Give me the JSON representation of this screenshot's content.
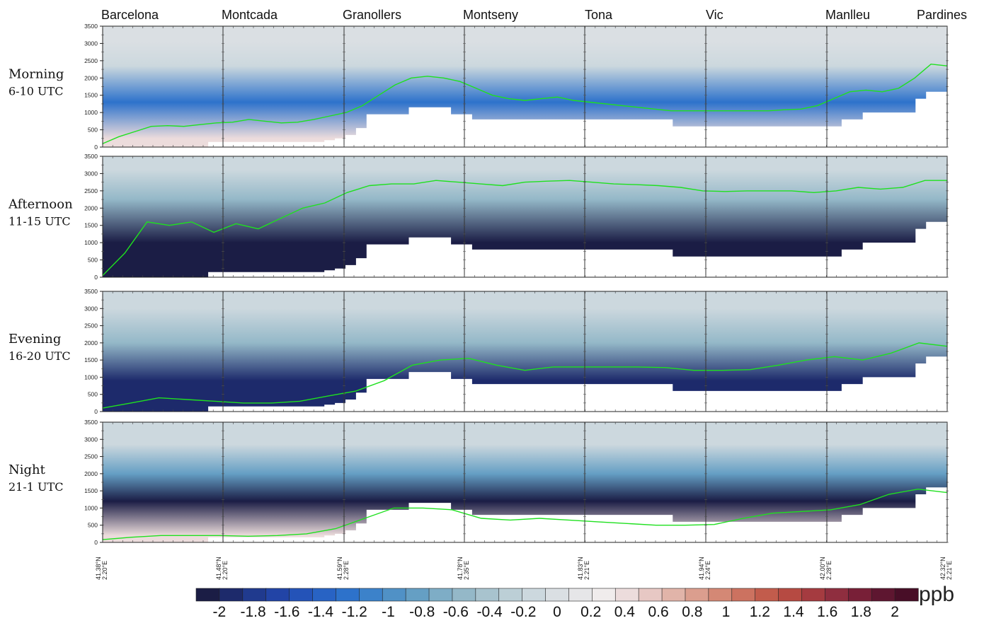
{
  "chart_data": {
    "type": "heatmap",
    "title": "",
    "unit": "ppb",
    "ylim": [
      0,
      3500
    ],
    "yticks": [
      0,
      500,
      1000,
      1500,
      2000,
      2500,
      3000,
      3500
    ],
    "locations": [
      "Barcelona",
      "Montcada",
      "Granollers",
      "Montseny",
      "Tona",
      "Vic",
      "Manlleu",
      "Pardines"
    ],
    "xtick_labels": [
      {
        "lat": "41.38°N",
        "lon": "2.20°E"
      },
      {
        "lat": "41.48°N",
        "lon": "2.20°E"
      },
      {
        "lat": "41.59°N",
        "lon": "2.28°E"
      },
      {
        "lat": "41.78°N",
        "lon": "2.35°E"
      },
      {
        "lat": "41.83°N",
        "lon": "2.21°E"
      },
      {
        "lat": "41.94°N",
        "lon": "2.24°E"
      },
      {
        "lat": "42.00°N",
        "lon": "2.28°E"
      },
      {
        "lat": "42.32°N",
        "lon": "2.21°E"
      }
    ],
    "terrain_m": [
      0,
      0,
      0,
      0,
      0,
      0,
      0,
      0,
      0,
      0,
      150,
      150,
      150,
      150,
      150,
      150,
      150,
      150,
      150,
      150,
      150,
      200,
      250,
      350,
      550,
      950,
      950,
      950,
      950,
      1150,
      1150,
      1150,
      1150,
      950,
      950,
      800,
      800,
      800,
      800,
      800,
      800,
      800,
      800,
      800,
      800,
      800,
      800,
      800,
      800,
      800,
      800,
      800,
      800,
      800,
      600,
      600,
      600,
      600,
      600,
      600,
      600,
      600,
      600,
      600,
      600,
      600,
      600,
      600,
      600,
      600,
      800,
      800,
      1000,
      1000,
      1000,
      1000,
      1000,
      1400,
      1600,
      1600
    ],
    "colorbar": {
      "ticks": [
        "-2",
        "-1.8",
        "-1.6",
        "-1.4",
        "-1.2",
        "-1",
        "-0.8",
        "-0.6",
        "-0.4",
        "-0.2",
        "0",
        "0.2",
        "0.4",
        "0.6",
        "0.8",
        "1",
        "1.2",
        "1.4",
        "1.6",
        "1.8",
        "2"
      ],
      "colors": [
        "#1b1d45",
        "#1d2a6b",
        "#203a8e",
        "#2244a6",
        "#2453b8",
        "#2863c4",
        "#2d72cb",
        "#3c82ca",
        "#5091c6",
        "#659fc4",
        "#7eadc6",
        "#94b8c8",
        "#a8c3ce",
        "#bccfd6",
        "#ccd8de",
        "#dadfe3",
        "#e6e6e8",
        "#f0ecec",
        "#ecdcdc",
        "#e7c8c4",
        "#e1b4a9",
        "#db9e8e",
        "#d48875",
        "#cc7260",
        "#c25c4c",
        "#b64a42",
        "#a53b40",
        "#8f2e3f",
        "#781f37",
        "#5e1630",
        "#480e27"
      ]
    },
    "panels": [
      {
        "label": "Morning",
        "utc": "6-10 UTC",
        "pbl_height_m": [
          100,
          300,
          450,
          600,
          620,
          600,
          650,
          700,
          720,
          800,
          750,
          700,
          720,
          800,
          900,
          1000,
          1200,
          1500,
          1800,
          2000,
          2050,
          2000,
          1900,
          1700,
          1500,
          1400,
          1350,
          1400,
          1450,
          1350,
          1300,
          1250,
          1200,
          1150,
          1100,
          1050,
          1050,
          1050,
          1050,
          1050,
          1050,
          1050,
          1080,
          1100,
          1200,
          1400,
          1600,
          1650,
          1600,
          1700,
          2000,
          2400,
          2350
        ],
        "anomaly_bands": [
          {
            "z": [
              2600,
              3500
            ],
            "v": 0.0
          },
          {
            "z": [
              2100,
              2600
            ],
            "v": -0.2
          },
          {
            "z": [
              500,
              2100
            ],
            "v": -1.2
          },
          {
            "z": [
              0,
              500
            ],
            "v": 0.4
          }
        ]
      },
      {
        "label": "Afternoon",
        "utc": "11-15 UTC",
        "pbl_height_m": [
          50,
          700,
          1600,
          1500,
          1600,
          1300,
          1550,
          1400,
          1700,
          2000,
          2150,
          2450,
          2650,
          2700,
          2700,
          2800,
          2750,
          2700,
          2650,
          2750,
          2780,
          2800,
          2750,
          2700,
          2680,
          2650,
          2600,
          2500,
          2480,
          2500,
          2500,
          2500,
          2450,
          2500,
          2600,
          2550,
          2600,
          2800,
          2800
        ],
        "anomaly_bands": [
          {
            "z": [
              2700,
              3500
            ],
            "v": -0.2
          },
          {
            "z": [
              1800,
              2700
            ],
            "v": -0.6
          },
          {
            "z": [
              200,
              1800
            ],
            "v": -2.0
          }
        ]
      },
      {
        "label": "Evening",
        "utc": "16-20 UTC",
        "pbl_height_m": [
          100,
          250,
          400,
          350,
          300,
          250,
          250,
          300,
          450,
          600,
          900,
          1350,
          1500,
          1550,
          1350,
          1200,
          1300,
          1300,
          1300,
          1300,
          1280,
          1200,
          1200,
          1220,
          1350,
          1500,
          1600,
          1500,
          1700,
          2000,
          1900
        ],
        "anomaly_bands": [
          {
            "z": [
              2500,
              3500
            ],
            "v": -0.2
          },
          {
            "z": [
              1500,
              2500
            ],
            "v": -0.6
          },
          {
            "z": [
              300,
              1500
            ],
            "v": -1.8
          }
        ]
      },
      {
        "label": "Night",
        "utc": "21-1 UTC",
        "pbl_height_m": [
          80,
          150,
          200,
          200,
          200,
          180,
          200,
          250,
          400,
          700,
          1000,
          1000,
          950,
          700,
          650,
          700,
          650,
          600,
          550,
          500,
          500,
          520,
          700,
          850,
          900,
          950,
          1100,
          1400,
          1550,
          1450
        ],
        "anomaly_bands": [
          {
            "z": [
              2200,
              3500
            ],
            "v": -0.2
          },
          {
            "z": [
              1800,
              2200
            ],
            "v": -0.8
          },
          {
            "z": [
              600,
              1800
            ],
            "v": -2.0
          },
          {
            "z": [
              0,
              400
            ],
            "v": 0.4
          }
        ]
      }
    ]
  }
}
